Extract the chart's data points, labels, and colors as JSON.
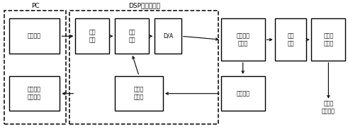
{
  "bg_color": "#ffffff",
  "box_facecolor": "#ffffff",
  "box_edgecolor": "#000000",
  "labels": {
    "pc_group": "PC",
    "dsp_group": "DSP运动控制器",
    "ctrl_cmd": "控制指令",
    "param_set": "参数设置\n状态查询",
    "traj_plan": "轨迹\n规划",
    "servo_algo": "伺服\n算法",
    "da": "D/A",
    "feedback_proc": "反馈信\n号处理",
    "servo_amp": "伺服驱动\n放大器",
    "feedback_dev": "反馈装置",
    "servo_motor": "伺服\n电机",
    "mech": "机械传\n动机构",
    "robot_pos": "机器人\n关节位置"
  },
  "figsize": [
    4.91,
    1.83
  ],
  "dpi": 100
}
